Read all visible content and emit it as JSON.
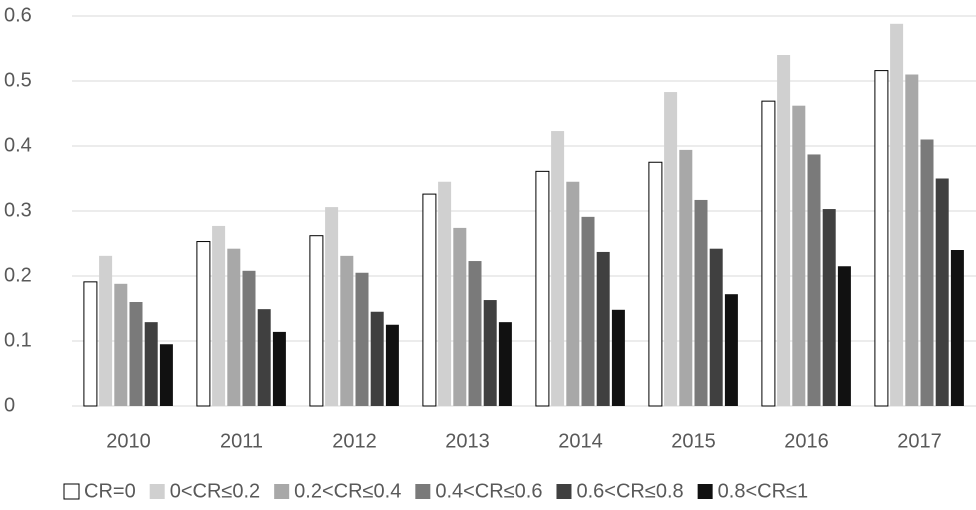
{
  "chart_data": {
    "type": "bar",
    "categories": [
      "2010",
      "2011",
      "2012",
      "2013",
      "2014",
      "2015",
      "2016",
      "2017"
    ],
    "series": [
      {
        "name": "CR=0",
        "color": "#ffffff",
        "values": [
          0.191,
          0.253,
          0.262,
          0.326,
          0.361,
          0.375,
          0.469,
          0.516
        ]
      },
      {
        "name": "0<CR≤0.2",
        "color": "#d0d0d0",
        "values": [
          0.231,
          0.277,
          0.306,
          0.345,
          0.423,
          0.483,
          0.54,
          0.588
        ]
      },
      {
        "name": "0.2<CR≤0.4",
        "color": "#a8a8a8",
        "values": [
          0.188,
          0.242,
          0.231,
          0.274,
          0.345,
          0.394,
          0.462,
          0.51
        ]
      },
      {
        "name": "0.4<CR≤0.6",
        "color": "#7a7a7a",
        "values": [
          0.16,
          0.208,
          0.205,
          0.223,
          0.291,
          0.317,
          0.387,
          0.41
        ]
      },
      {
        "name": "0.6<CR≤0.8",
        "color": "#404040",
        "values": [
          0.129,
          0.149,
          0.145,
          0.163,
          0.237,
          0.242,
          0.303,
          0.35
        ]
      },
      {
        "name": "0.8<CR≤1",
        "color": "#111111",
        "values": [
          0.095,
          0.114,
          0.125,
          0.129,
          0.148,
          0.172,
          0.215,
          0.24
        ]
      }
    ],
    "ylim": [
      0,
      0.6
    ],
    "yticks": [
      0,
      0.1,
      0.2,
      0.3,
      0.4,
      0.5,
      0.6
    ],
    "grid": true,
    "legend": "bottom"
  }
}
